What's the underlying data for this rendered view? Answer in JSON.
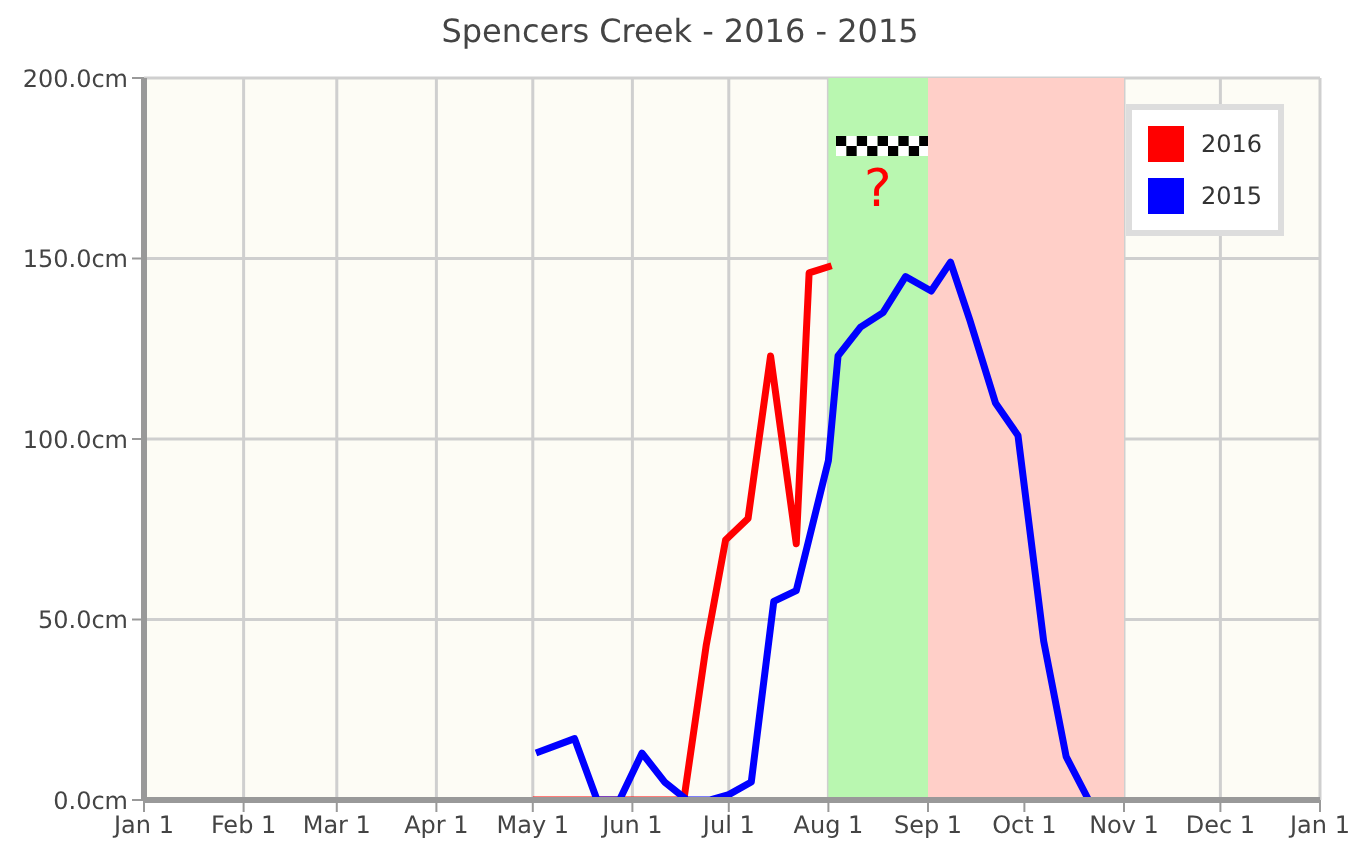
{
  "chart_data": {
    "type": "line",
    "title": "Spencers Creek - 2016 - 2015",
    "series": [
      {
        "name": "2016",
        "color": "#ff0000",
        "x": [
          "2016-05-01",
          "2016-06-17",
          "2016-06-24",
          "2016-06-30",
          "2016-07-07",
          "2016-07-14",
          "2016-07-22",
          "2016-07-26",
          "2016-08-02"
        ],
        "values": [
          0,
          0,
          43,
          72,
          78,
          123,
          71,
          146,
          148
        ]
      },
      {
        "name": "2015",
        "color": "#0000ff",
        "x": [
          "2016-05-02",
          "2016-05-14",
          "2016-05-21",
          "2016-05-28",
          "2016-06-04",
          "2016-06-11",
          "2016-06-18",
          "2016-06-25",
          "2016-07-01",
          "2016-07-08",
          "2016-07-15",
          "2016-07-22",
          "2016-08-01",
          "2016-08-04",
          "2016-08-11",
          "2016-08-18",
          "2016-08-25",
          "2016-09-02",
          "2016-09-08",
          "2016-09-14",
          "2016-09-22",
          "2016-09-29",
          "2016-10-07",
          "2016-10-14",
          "2016-10-21"
        ],
        "values": [
          13,
          17,
          0,
          0,
          13,
          5,
          0,
          0,
          1.5,
          5,
          55,
          58,
          94,
          123,
          131,
          135,
          145,
          141,
          149,
          133,
          110,
          101,
          44,
          12,
          0
        ]
      }
    ],
    "xlim": [
      "2016-01-01",
      "2017-01-01"
    ],
    "xticks": [
      {
        "value": "2016-01-01",
        "label": "Jan 1"
      },
      {
        "value": "2016-02-01",
        "label": "Feb 1"
      },
      {
        "value": "2016-03-01",
        "label": "Mar 1"
      },
      {
        "value": "2016-04-01",
        "label": "Apr 1"
      },
      {
        "value": "2016-05-01",
        "label": "May 1"
      },
      {
        "value": "2016-06-01",
        "label": "Jun 1"
      },
      {
        "value": "2016-07-01",
        "label": "Jul 1"
      },
      {
        "value": "2016-08-01",
        "label": "Aug 1"
      },
      {
        "value": "2016-09-01",
        "label": "Sep 1"
      },
      {
        "value": "2016-10-01",
        "label": "Oct 1"
      },
      {
        "value": "2016-11-01",
        "label": "Nov 1"
      },
      {
        "value": "2016-12-01",
        "label": "Dec 1"
      },
      {
        "value": "2017-01-01",
        "label": "Jan 1"
      }
    ],
    "ylim": [
      0,
      200
    ],
    "yticks": [
      {
        "value": 0,
        "label": "0.0cm"
      },
      {
        "value": 50,
        "label": "50.0cm"
      },
      {
        "value": 100,
        "label": "100.0cm"
      },
      {
        "value": 150,
        "label": "150.0cm"
      },
      {
        "value": 200,
        "label": "200.0cm"
      }
    ],
    "bands": [
      {
        "axis": "x",
        "from": "2016-08-01",
        "to": "2016-09-01",
        "color": "#b9f7b0"
      },
      {
        "axis": "x",
        "from": "2016-09-01",
        "to": "2016-11-01",
        "color": "#ffcfc8"
      }
    ],
    "annotations": [
      "?"
    ],
    "grid": true,
    "legend": "top right",
    "marker": "none",
    "line_style": "solid"
  }
}
